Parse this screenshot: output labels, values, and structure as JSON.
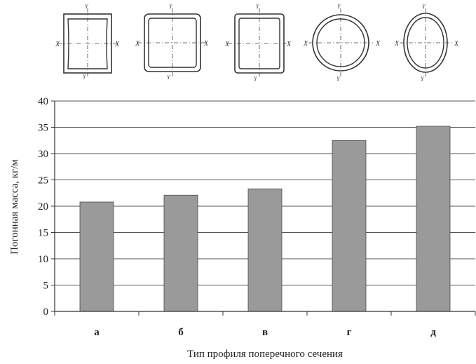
{
  "section_symbols": {
    "axis_x": "X",
    "axis_y": "Y"
  },
  "chart_data": {
    "type": "bar",
    "categories": [
      "а",
      "б",
      "в",
      "г",
      "д"
    ],
    "values": [
      20.8,
      22.1,
      23.3,
      32.5,
      35.2
    ],
    "title": "",
    "xlabel": "Тип профиля поперечного сечения",
    "ylabel": "Погонная масса, кг/м",
    "ylim": [
      0,
      40
    ],
    "yticks": [
      0,
      5,
      10,
      15,
      20,
      25,
      30,
      35,
      40
    ],
    "grid": true,
    "legend": "none",
    "colors": {
      "bar": "#9a9a9a",
      "bar_stroke": "#4a4a4a",
      "grid": "#555555",
      "axis": "#333333"
    }
  }
}
